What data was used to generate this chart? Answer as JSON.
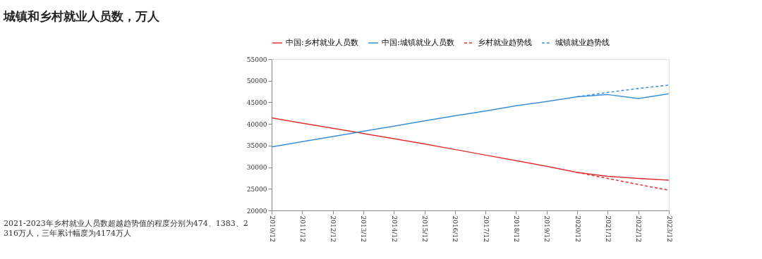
{
  "chart_data": {
    "type": "line",
    "title": "城镇和乡村就业人员数，万人",
    "categories": [
      "2010/12",
      "2011/12",
      "2012/12",
      "2013/12",
      "2014/12",
      "2015/12",
      "2016/12",
      "2017/12",
      "2018/12",
      "2019/12",
      "2020/12",
      "2021/12",
      "2022/12",
      "2023/12"
    ],
    "series": [
      {
        "name": "中国:乡村就业人员数",
        "color": "#e03030",
        "line_style": "solid",
        "values": [
          41400,
          40200,
          39000,
          37800,
          36600,
          35400,
          34100,
          32800,
          31500,
          30200,
          28800,
          27900,
          27400,
          27000
        ]
      },
      {
        "name": "中国:城镇就业人员数",
        "color": "#3a8fd8",
        "line_style": "solid",
        "values": [
          34700,
          35900,
          37100,
          38300,
          39500,
          40700,
          41900,
          43000,
          44200,
          45200,
          46300,
          46800,
          45900,
          47000
        ]
      },
      {
        "name": "乡村就业趋势线",
        "color": "#e03030",
        "line_style": "dashed",
        "values": [
          null,
          null,
          null,
          null,
          null,
          null,
          null,
          null,
          null,
          null,
          28800,
          27400,
          26000,
          24700
        ]
      },
      {
        "name": "城镇就业趋势线",
        "color": "#3a8fd8",
        "line_style": "dashed",
        "values": [
          null,
          null,
          null,
          null,
          null,
          null,
          null,
          null,
          null,
          null,
          46300,
          47300,
          48200,
          49000
        ]
      }
    ],
    "ylim": [
      20000,
      55000
    ],
    "yticks": [
      20000,
      25000,
      30000,
      35000,
      40000,
      45000,
      50000,
      55000
    ],
    "legend": "top",
    "annotations": [
      "2021-2023年乡村就业人员数超越趋势值的程度分别为474、1383、2316万人，三年累计幅度为4174万人"
    ]
  }
}
